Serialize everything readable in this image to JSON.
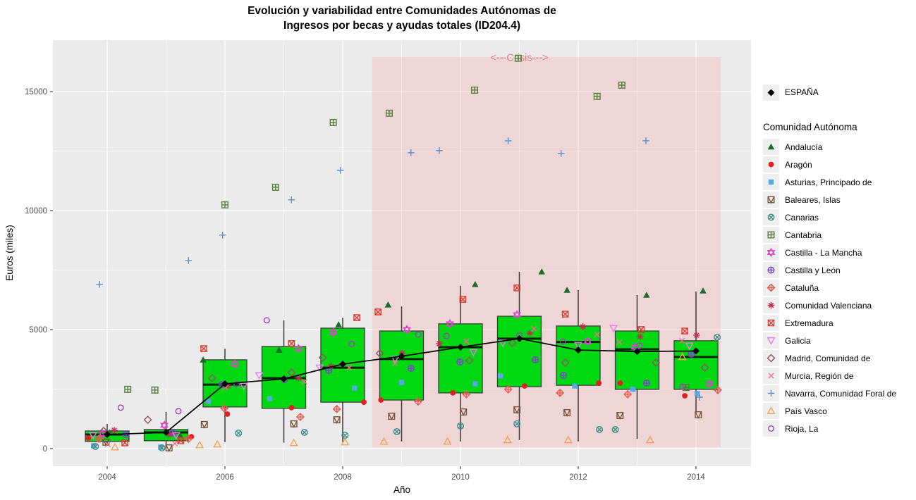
{
  "chart_data": {
    "type": "boxplot-scatter-line",
    "title": "Evolución y variabilidad entre Comunidades Autónomas de Ingresos por becas y ayudas totales (ID204.4)",
    "title_line1": "Evolución y variabilidad entre Comunidades Autónomas de",
    "title_line2": "Ingresos por becas y ayudas totales (ID204.4)",
    "xlabel": "Año",
    "ylabel": "Euros (miles)",
    "x_ticks": [
      2004,
      2006,
      2008,
      2010,
      2012,
      2014
    ],
    "x_minor_ticks": [
      2005,
      2007,
      2009,
      2011,
      2013
    ],
    "y_ticks": [
      0,
      5000,
      10000,
      15000
    ],
    "y_minor_ticks": [
      2500,
      7500,
      12500
    ],
    "xlim": [
      2003.08,
      2014.93
    ],
    "ylim": [
      -740,
      17160
    ],
    "grid": true,
    "legend_position": "right",
    "style": {
      "panel_bg": "#ebebeb",
      "grid_major": "#ffffff",
      "grid_minor": "#ffffff",
      "box_fill": "#00d911",
      "box_stroke": "#3a3a3a",
      "median_color": "#0b230b",
      "whisker_color": "#3a3a3a",
      "tick_label_color": "#4d4d4d",
      "band_fill": "#ff8c8c",
      "band_opacity": 0.22,
      "crisis_label_color": "#d95f5f",
      "espana_line_color": "#000000",
      "legend_key_bg": "#efefef"
    },
    "crisis_band": {
      "label": "<---Crisis--->",
      "x_from": 2008.5,
      "x_to": 2014.42,
      "y_from": 60,
      "y_to": 16450,
      "label_x": 2011,
      "label_y": 16280
    },
    "boxplots": [
      {
        "year": 2004,
        "lo": 120,
        "q1": 300,
        "med": 590,
        "q3": 740,
        "hi": 1040
      },
      {
        "year": 2005,
        "lo": 100,
        "q1": 330,
        "med": 680,
        "q3": 800,
        "hi": 1540
      },
      {
        "year": 2006,
        "lo": 270,
        "q1": 1750,
        "med": 2690,
        "q3": 3730,
        "hi": 4200
      },
      {
        "year": 2007,
        "lo": 250,
        "q1": 1690,
        "med": 2960,
        "q3": 4290,
        "hi": 5390
      },
      {
        "year": 2008,
        "lo": 270,
        "q1": 1950,
        "med": 3400,
        "q3": 5060,
        "hi": 5500
      },
      {
        "year": 2009,
        "lo": 300,
        "q1": 2040,
        "med": 3760,
        "q3": 4940,
        "hi": 5970
      },
      {
        "year": 2010,
        "lo": 300,
        "q1": 2340,
        "med": 4260,
        "q3": 5240,
        "hi": 6840
      },
      {
        "year": 2011,
        "lo": 360,
        "q1": 2600,
        "med": 4620,
        "q3": 5560,
        "hi": 7430
      },
      {
        "year": 2012,
        "lo": 300,
        "q1": 2660,
        "med": 4480,
        "q3": 5150,
        "hi": 6660
      },
      {
        "year": 2013,
        "lo": 410,
        "q1": 2490,
        "med": 4170,
        "q3": 4940,
        "hi": 6450
      },
      {
        "year": 2014,
        "lo": 1510,
        "q1": 2490,
        "med": 3850,
        "q3": 4530,
        "hi": 6600
      }
    ],
    "espana": {
      "name": "ESPAÑA",
      "shape": "diamond-filled",
      "color": "#000000",
      "points": [
        [
          2004,
          590
        ],
        [
          2005,
          680
        ],
        [
          2006,
          2720
        ],
        [
          2007,
          2930
        ],
        [
          2008,
          3550
        ],
        [
          2009,
          3880
        ],
        [
          2010,
          4260
        ],
        [
          2011,
          4620
        ],
        [
          2012,
          4140
        ],
        [
          2013,
          4080
        ],
        [
          2014,
          4100
        ]
      ]
    },
    "series": [
      {
        "name": "Andalucía",
        "shape": "triangle-filled",
        "color": "#1d6d28",
        "points": [
          [
            2004.04,
            680
          ],
          [
            2005.23,
            590
          ],
          [
            2005.63,
            3730
          ],
          [
            2006.92,
            4140
          ],
          [
            2007.93,
            5210
          ],
          [
            2008.77,
            6040
          ],
          [
            2010.25,
            6900
          ],
          [
            2011.38,
            7430
          ],
          [
            2011.81,
            6660
          ],
          [
            2013.16,
            6450
          ],
          [
            2014.12,
            6630
          ]
        ]
      },
      {
        "name": "Aragón",
        "shape": "circle-filled",
        "color": "#e32020",
        "points": [
          [
            2003.68,
            440
          ],
          [
            2005.43,
            500
          ],
          [
            2006.04,
            1450
          ],
          [
            2007.13,
            1720
          ],
          [
            2008.36,
            1950
          ],
          [
            2008.65,
            2040
          ],
          [
            2009.87,
            2340
          ],
          [
            2011.09,
            2630
          ],
          [
            2012.35,
            2750
          ],
          [
            2012.71,
            2750
          ],
          [
            2013.81,
            2220
          ]
        ]
      },
      {
        "name": "Asturias, Principado de",
        "shape": "square-filled",
        "color": "#57aae0",
        "points": [
          [
            2003.77,
            120
          ],
          [
            2004.91,
            60
          ],
          [
            2005.72,
            1980
          ],
          [
            2006.76,
            2100
          ],
          [
            2008.2,
            2540
          ],
          [
            2009.0,
            2780
          ],
          [
            2010.25,
            2720
          ],
          [
            2010.68,
            3050
          ],
          [
            2011.94,
            2630
          ],
          [
            2012.93,
            2490
          ],
          [
            2014.02,
            2310
          ]
        ]
      },
      {
        "name": "Baleares, Islas",
        "shape": "square-triangle-down",
        "color": "#77553a",
        "points": [
          [
            2003.98,
            270
          ],
          [
            2005.05,
            30
          ],
          [
            2005.65,
            1010
          ],
          [
            2007.17,
            1040
          ],
          [
            2007.9,
            1210
          ],
          [
            2008.83,
            1360
          ],
          [
            2010.05,
            1540
          ],
          [
            2010.96,
            1630
          ],
          [
            2011.81,
            1510
          ],
          [
            2012.71,
            1390
          ],
          [
            2014.04,
            1420
          ]
        ]
      },
      {
        "name": "Canarias",
        "shape": "circle-x",
        "color": "#3d8f85",
        "points": [
          [
            2003.8,
            90
          ],
          [
            2004.93,
            30
          ],
          [
            2006.23,
            650
          ],
          [
            2007.35,
            680
          ],
          [
            2008.04,
            560
          ],
          [
            2008.92,
            710
          ],
          [
            2010.0,
            950
          ],
          [
            2010.96,
            1040
          ],
          [
            2012.36,
            800
          ],
          [
            2012.63,
            800
          ],
          [
            2014.36,
            4680
          ]
        ]
      },
      {
        "name": "Cantabria",
        "shape": "square-plus",
        "color": "#557d3b",
        "points": [
          [
            2004.35,
            2490
          ],
          [
            2004.81,
            2460
          ],
          [
            2006.0,
            10240
          ],
          [
            2006.86,
            10980
          ],
          [
            2007.84,
            13700
          ],
          [
            2008.79,
            14090
          ],
          [
            2010.24,
            15060
          ],
          [
            2010.98,
            16400
          ],
          [
            2012.32,
            14800
          ],
          [
            2012.74,
            15270
          ],
          [
            2013.83,
            2570
          ]
        ]
      },
      {
        "name": "Castilla - La Mancha",
        "shape": "hexagram",
        "color": "#dd44cc",
        "points": [
          [
            2003.92,
            620
          ],
          [
            2004.97,
            980
          ],
          [
            2006.17,
            3550
          ],
          [
            2007.25,
            4200
          ],
          [
            2007.84,
            4880
          ],
          [
            2009.09,
            5000
          ],
          [
            2009.82,
            5240
          ],
          [
            2010.96,
            5620
          ],
          [
            2012.16,
            4500
          ],
          [
            2012.96,
            4260
          ],
          [
            2014.23,
            2720
          ]
        ]
      },
      {
        "name": "Castilla y León",
        "shape": "circle-plus",
        "color": "#7d42c8",
        "points": [
          [
            2004.32,
            590
          ],
          [
            2005.11,
            650
          ],
          [
            2005.95,
            2690
          ],
          [
            2007.01,
            2900
          ],
          [
            2007.76,
            3280
          ],
          [
            2009.16,
            3370
          ],
          [
            2009.99,
            3640
          ],
          [
            2011.27,
            3730
          ],
          [
            2011.75,
            3080
          ],
          [
            2013.16,
            2750
          ],
          [
            2013.92,
            3970
          ]
        ]
      },
      {
        "name": "Cataluña",
        "shape": "diamond-plus",
        "color": "#ea5a50",
        "points": [
          [
            2003.86,
            410
          ],
          [
            2005.38,
            410
          ],
          [
            2005.99,
            1690
          ],
          [
            2007.28,
            1330
          ],
          [
            2007.9,
            1660
          ],
          [
            2009.28,
            1980
          ],
          [
            2010.1,
            2280
          ],
          [
            2010.81,
            2490
          ],
          [
            2011.69,
            2340
          ],
          [
            2012.84,
            2280
          ],
          [
            2014.37,
            2460
          ]
        ]
      },
      {
        "name": "Comunidad Valenciana",
        "shape": "asterisk",
        "color": "#c62a50",
        "points": [
          [
            2004.12,
            770
          ],
          [
            2005.05,
            590
          ],
          [
            2006.05,
            2630
          ],
          [
            2007.25,
            2960
          ],
          [
            2007.8,
            3460
          ],
          [
            2009.01,
            4000
          ],
          [
            2009.64,
            4410
          ],
          [
            2011.18,
            4850
          ],
          [
            2012.08,
            5120
          ],
          [
            2013.05,
            4700
          ],
          [
            2014.01,
            4760
          ]
        ]
      },
      {
        "name": "Extremadura",
        "shape": "square-x",
        "color": "#dd3a30",
        "points": [
          [
            2004.3,
            240
          ],
          [
            2005.25,
            330
          ],
          [
            2005.64,
            4200
          ],
          [
            2007.13,
            4410
          ],
          [
            2008.24,
            5500
          ],
          [
            2008.6,
            5740
          ],
          [
            2010.04,
            6270
          ],
          [
            2010.96,
            6750
          ],
          [
            2011.78,
            5650
          ],
          [
            2013.07,
            5000
          ],
          [
            2013.81,
            4940
          ]
        ]
      },
      {
        "name": "Galicia",
        "shape": "triangle-down-open",
        "color": "#ef7ae8",
        "points": [
          [
            2003.76,
            560
          ],
          [
            2005.17,
            560
          ],
          [
            2006.32,
            2630
          ],
          [
            2006.58,
            3080
          ],
          [
            2007.61,
            3400
          ],
          [
            2008.89,
            3760
          ],
          [
            2010.22,
            4050
          ],
          [
            2010.72,
            4440
          ],
          [
            2012.0,
            4350
          ],
          [
            2012.6,
            5060
          ],
          [
            2013.89,
            4320
          ]
        ]
      },
      {
        "name": "Madrid, Comunidad de",
        "shape": "diamond-open",
        "color": "#94545a",
        "points": [
          [
            2003.94,
            740
          ],
          [
            2004.69,
            1210
          ],
          [
            2005.78,
            2960
          ],
          [
            2007.13,
            3200
          ],
          [
            2007.66,
            3820
          ],
          [
            2008.63,
            4000
          ],
          [
            2010.15,
            3700
          ],
          [
            2010.88,
            4440
          ],
          [
            2011.78,
            3610
          ],
          [
            2013.32,
            3610
          ],
          [
            2014.15,
            3400
          ]
        ]
      },
      {
        "name": "Murcia, Región de",
        "shape": "x-mark",
        "color": "#ef6f95",
        "points": [
          [
            2004.01,
            180
          ],
          [
            2005.15,
            210
          ],
          [
            2006.01,
            2570
          ],
          [
            2007.35,
            2810
          ],
          [
            2008.11,
            3400
          ],
          [
            2008.89,
            3580
          ],
          [
            2010.1,
            4500
          ],
          [
            2011.25,
            5030
          ],
          [
            2012.32,
            4790
          ],
          [
            2012.7,
            4470
          ],
          [
            2013.76,
            4530
          ]
        ]
      },
      {
        "name": "Navarra, Comunidad Foral de",
        "shape": "plus-mark",
        "color": "#5b8fc9",
        "points": [
          [
            2003.87,
            6900
          ],
          [
            2005.38,
            7900
          ],
          [
            2005.96,
            8970
          ],
          [
            2007.13,
            10450
          ],
          [
            2007.96,
            11690
          ],
          [
            2009.16,
            12430
          ],
          [
            2009.64,
            12520
          ],
          [
            2010.81,
            12930
          ],
          [
            2011.71,
            12400
          ],
          [
            2013.15,
            12930
          ],
          [
            2014.06,
            2160
          ]
        ]
      },
      {
        "name": "País Vasco",
        "shape": "triangle-open",
        "color": "#f6a055",
        "points": [
          [
            2004.13,
            60
          ],
          [
            2005.57,
            150
          ],
          [
            2005.87,
            180
          ],
          [
            2007.17,
            240
          ],
          [
            2008.04,
            270
          ],
          [
            2008.7,
            300
          ],
          [
            2009.78,
            300
          ],
          [
            2010.8,
            360
          ],
          [
            2011.83,
            360
          ],
          [
            2013.22,
            360
          ],
          [
            2013.77,
            3850
          ]
        ]
      },
      {
        "name": "Rioja, La",
        "shape": "circle-open",
        "color": "#a040c0",
        "points": [
          [
            2004.23,
            1720
          ],
          [
            2005.21,
            1570
          ],
          [
            2006.2,
            2700
          ],
          [
            2006.71,
            5390
          ],
          [
            2008.15,
            4400
          ],
          [
            2009.28,
            4790
          ],
          [
            2009.76,
            4730
          ],
          [
            2011.0,
            4760
          ],
          [
            2011.74,
            4500
          ],
          [
            2013.04,
            4320
          ],
          [
            2013.77,
            2600
          ]
        ]
      }
    ]
  },
  "legend": {
    "espana_label": "ESPAÑA",
    "title": "Comunidad Autónoma"
  }
}
